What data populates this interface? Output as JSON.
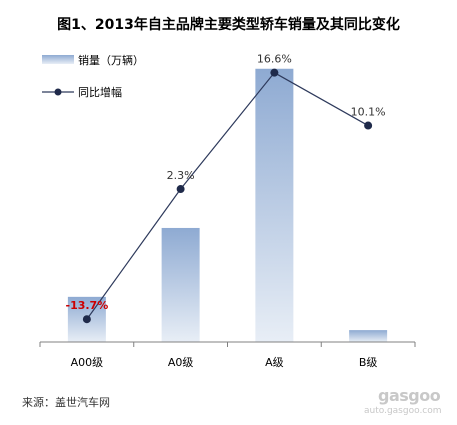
{
  "title": "图1、2013年自主品牌主要类型轿车销量及其同比变化",
  "source": "来源：盖世汽车网",
  "watermark": {
    "logo": "gasgoo",
    "url": "auto.gasgoo.com"
  },
  "colors": {
    "bar_top": "#8eaad2",
    "bar_bottom": "#e8eef6",
    "line": "#2e3a5c",
    "marker": "#1f2a4a",
    "label": "#333333",
    "label_negative": "#cc0000",
    "axis": "#808080"
  },
  "chart_data": {
    "type": "bar",
    "categories": [
      "A00级",
      "A0级",
      "A级",
      "B级"
    ],
    "series": [
      {
        "name": "销量（万辆）",
        "type": "bar",
        "values": [
          19,
          48,
          115,
          5
        ]
      },
      {
        "name": "同比增幅",
        "type": "line",
        "values": [
          -13.7,
          2.3,
          16.6,
          10.1
        ],
        "labels": [
          "-13.7%",
          "2.3%",
          "16.6%",
          "10.1%"
        ]
      }
    ],
    "bar_ylim": [
      0,
      125
    ],
    "line_ylim": [
      -16.5,
      20.0
    ],
    "legend_position": "top-left",
    "grid": false
  }
}
